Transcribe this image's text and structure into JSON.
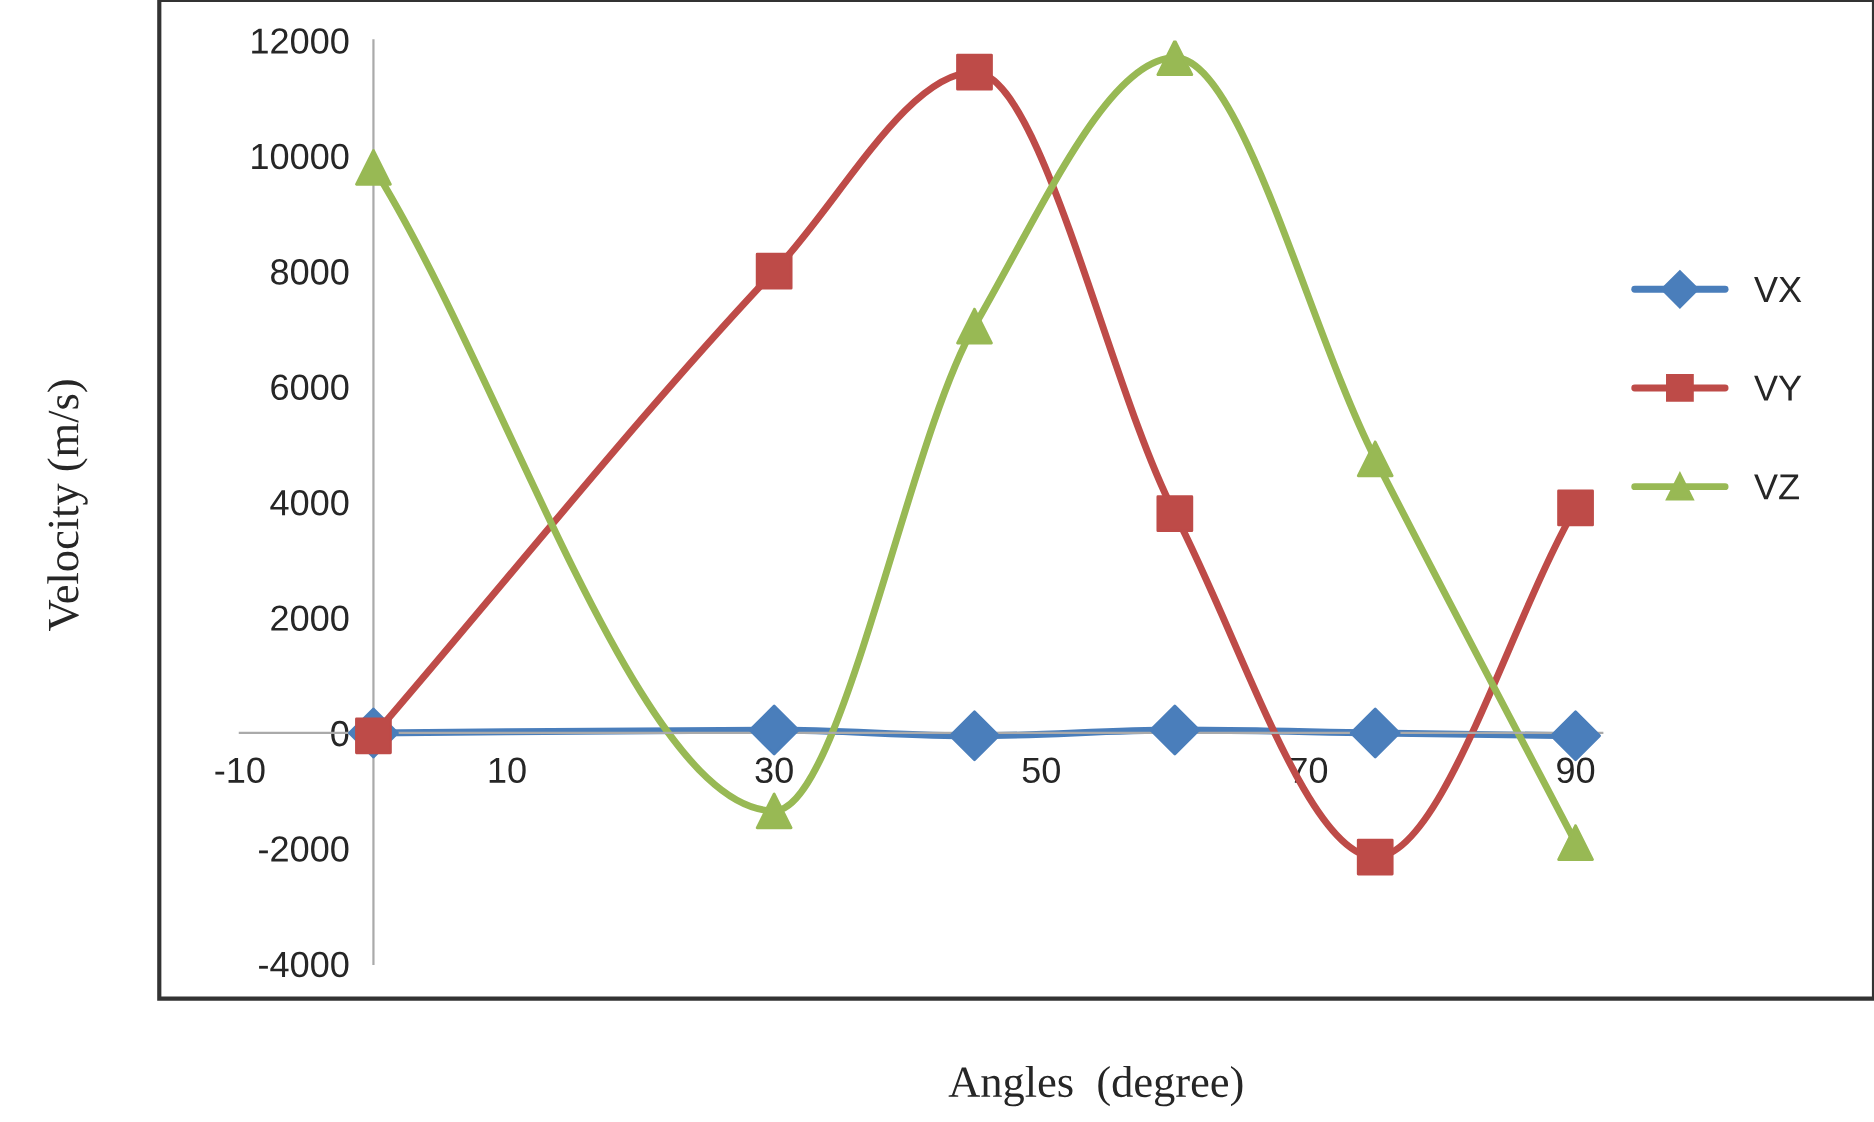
{
  "chart_data": {
    "type": "line",
    "xlabel": "Angles  (degree)",
    "ylabel": "Velocity (m/s)",
    "x": [
      0,
      30,
      45,
      60,
      75,
      90
    ],
    "series": [
      {
        "name": "VX",
        "color": "#4a7ebb",
        "marker": "diamond",
        "values": [
          0,
          50,
          -50,
          50,
          0,
          -50
        ]
      },
      {
        "name": "VY",
        "color": "#be4b48",
        "marker": "square",
        "values": [
          -50,
          8000,
          11450,
          3800,
          -2150,
          3900
        ]
      },
      {
        "name": "VZ",
        "color": "#98b954",
        "marker": "triangle",
        "values": [
          9800,
          -1350,
          7050,
          11700,
          4750,
          -1900
        ]
      }
    ],
    "xlim": [
      -10,
      92
    ],
    "xticks": [
      -10,
      10,
      30,
      50,
      70,
      90
    ],
    "ylim": [
      -4000,
      12000
    ],
    "yticks": [
      -4000,
      -2000,
      0,
      2000,
      4000,
      6000,
      8000,
      10000,
      12000
    ],
    "grid": false,
    "legend": "right",
    "line_style": "solid"
  }
}
